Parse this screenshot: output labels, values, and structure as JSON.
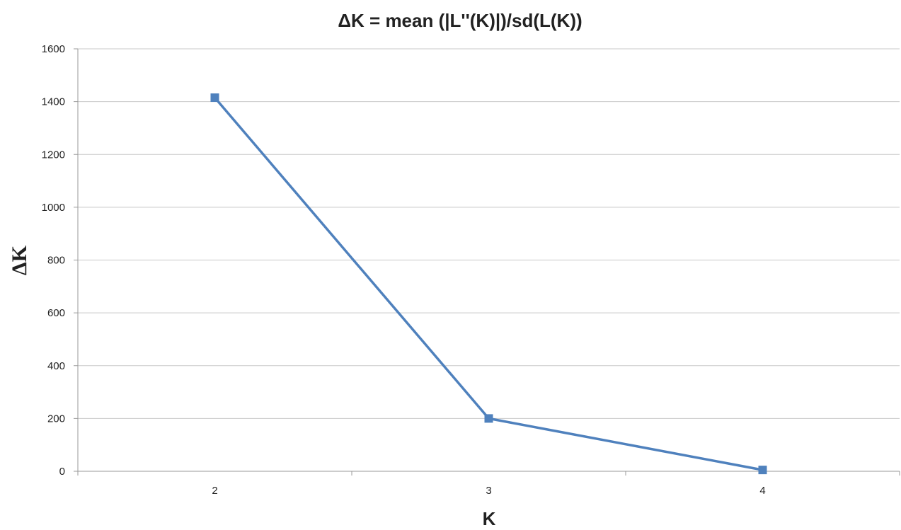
{
  "chart_data": {
    "type": "line",
    "title": "ΔK = mean (|L''(K)|)/sd(L(K))",
    "xlabel": "K",
    "ylabel": "ΔK",
    "categories": [
      "2",
      "3",
      "4"
    ],
    "series": [
      {
        "values": [
          1415,
          200,
          5
        ]
      }
    ],
    "ylim": [
      0,
      1600
    ],
    "yticks": [
      "0",
      "200",
      "400",
      "600",
      "800",
      "1000",
      "1200",
      "1400",
      "1600"
    ],
    "grid": true,
    "legend": "none",
    "marker": "square",
    "series_color": "#4f81bd"
  }
}
